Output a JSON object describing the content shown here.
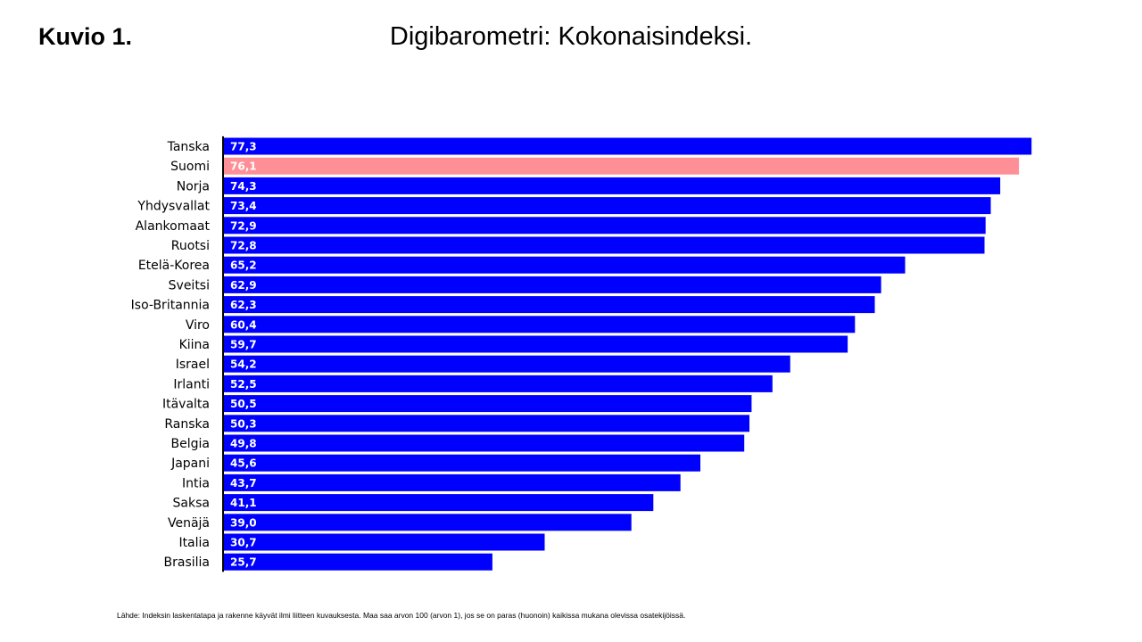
{
  "slide": {
    "label": "Kuvio 1.",
    "title": "Digibarometri: Kokonaisindeksi.",
    "source": "Lähde: Indeksin laskentatapa ja rakenne käyvät ilmi liitteen kuvauksesta. Maa saa arvon 100 (arvon 1), jos se on paras (huonoin) kaikissa mukana olevissa osatekijöissä."
  },
  "colors": {
    "bar": "#0000ff",
    "highlight": "#ff8f96",
    "axis": "#000000",
    "label_text": "#ffffff"
  },
  "chart_data": {
    "type": "bar",
    "orientation": "horizontal",
    "title": "Digibarometri: Kokonaisindeksi.",
    "xlim": [
      0,
      80
    ],
    "grid": false,
    "legend": "none",
    "highlighted_category": "Suomi",
    "categories": [
      "Tanska",
      "Suomi",
      "Norja",
      "Yhdysvallat",
      "Alankomaat",
      "Ruotsi",
      "Etelä-Korea",
      "Sveitsi",
      "Iso-Britannia",
      "Viro",
      "Kiina",
      "Israel",
      "Irlanti",
      "Itävalta",
      "Ranska",
      "Belgia",
      "Japani",
      "Intia",
      "Saksa",
      "Venäjä",
      "Italia",
      "Brasilia"
    ],
    "values": [
      77.3,
      76.1,
      74.3,
      73.4,
      72.9,
      72.8,
      65.2,
      62.9,
      62.3,
      60.4,
      59.7,
      54.2,
      52.5,
      50.5,
      50.3,
      49.8,
      45.6,
      43.7,
      41.1,
      39.0,
      30.7,
      25.7
    ],
    "value_labels": [
      "77,3",
      "76,1",
      "74,3",
      "73,4",
      "72,9",
      "72,8",
      "65,2",
      "62,9",
      "62,3",
      "60,4",
      "59,7",
      "54,2",
      "52,5",
      "50,5",
      "50,3",
      "49,8",
      "45,6",
      "43,7",
      "41,1",
      "39,0",
      "30,7",
      "25,7"
    ]
  }
}
